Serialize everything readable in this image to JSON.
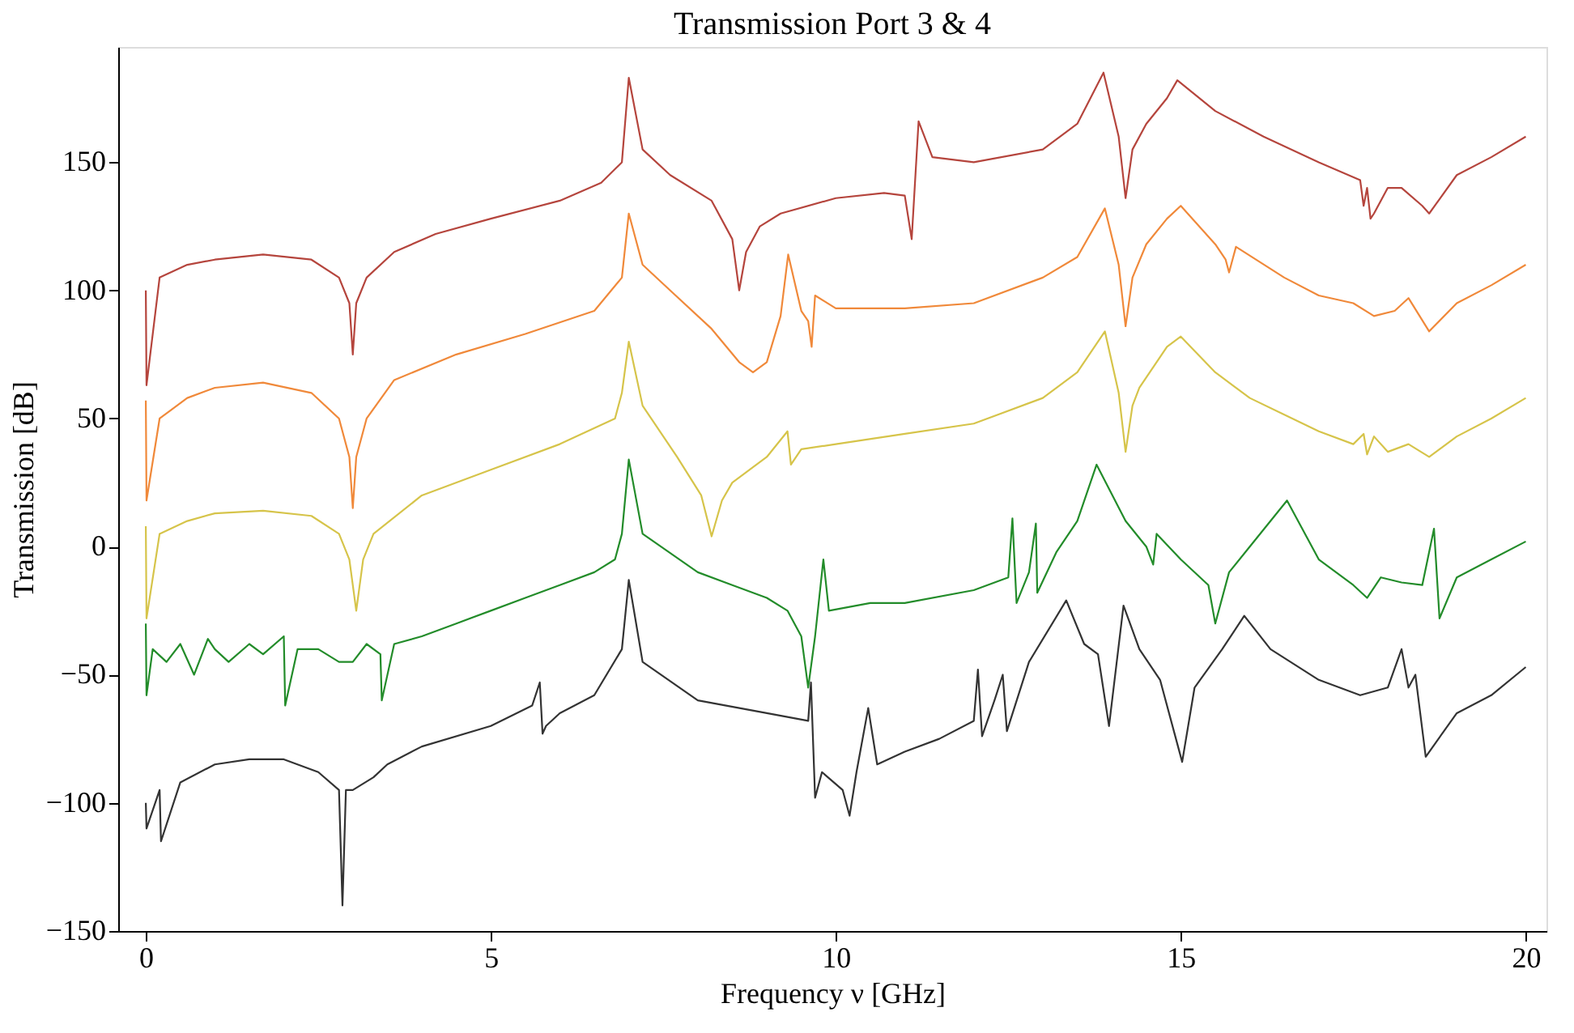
{
  "chart_data": {
    "type": "line",
    "title": "Transmission Port 3 & 4",
    "xlabel": "Frequency ν [GHz]",
    "ylabel": "Transmission [dB]",
    "xlim": [
      -0.4,
      20.3
    ],
    "ylim": [
      -150,
      195
    ],
    "xticks": [
      0,
      5,
      10,
      15,
      20
    ],
    "yticks": [
      -150,
      -100,
      -50,
      0,
      50,
      100,
      150
    ],
    "grid": false,
    "marker": "none",
    "line_style": "solid",
    "series": [
      {
        "color": "#b5453d",
        "x": [
          0,
          0.01,
          0.2,
          0.6,
          1,
          1.7,
          2.4,
          2.8,
          2.95,
          3.0,
          3.05,
          3.2,
          3.6,
          4.2,
          5,
          6,
          6.6,
          6.9,
          7.0,
          7.2,
          7.6,
          8.2,
          8.5,
          8.6,
          8.7,
          8.9,
          9.2,
          10,
          10.7,
          11.0,
          11.1,
          11.2,
          11.4,
          12,
          13,
          13.5,
          13.88,
          14.1,
          14.2,
          14.3,
          14.5,
          14.8,
          14.95,
          15.5,
          16.2,
          17.0,
          17.6,
          17.65,
          17.7,
          17.75,
          17.8,
          18.0,
          18.2,
          18.5,
          18.6,
          19.0,
          19.5,
          20
        ],
        "values": [
          100,
          63,
          105,
          110,
          112,
          114,
          112,
          105,
          95,
          75,
          95,
          105,
          115,
          122,
          128,
          135,
          142,
          150,
          183,
          155,
          145,
          135,
          120,
          100,
          115,
          125,
          130,
          136,
          138,
          137,
          120,
          166,
          152,
          150,
          155,
          165,
          185,
          160,
          136,
          155,
          165,
          175,
          182,
          170,
          160,
          150,
          143,
          133,
          140,
          128,
          130,
          140,
          140,
          133,
          130,
          145,
          152,
          160
        ]
      },
      {
        "color": "#f0893a",
        "x": [
          0,
          0.01,
          0.2,
          0.6,
          1,
          1.7,
          2.4,
          2.8,
          2.95,
          3.0,
          3.05,
          3.2,
          3.6,
          4.5,
          5.5,
          6.5,
          6.9,
          7.0,
          7.2,
          7.6,
          8.2,
          8.6,
          8.8,
          9.0,
          9.2,
          9.31,
          9.5,
          9.6,
          9.65,
          9.7,
          10,
          11,
          12,
          13,
          13.5,
          13.9,
          14.1,
          14.2,
          14.3,
          14.5,
          14.8,
          15.0,
          15.5,
          15.65,
          15.7,
          15.8,
          16.5,
          17,
          17.5,
          17.8,
          18.1,
          18.3,
          18.6,
          19,
          19.5,
          20
        ],
        "values": [
          57,
          18,
          50,
          58,
          62,
          64,
          60,
          50,
          35,
          15,
          35,
          50,
          65,
          75,
          83,
          92,
          105,
          130,
          110,
          100,
          85,
          72,
          68,
          72,
          90,
          114,
          92,
          88,
          78,
          98,
          93,
          93,
          95,
          105,
          113,
          132,
          110,
          86,
          105,
          118,
          128,
          133,
          118,
          112,
          107,
          117,
          105,
          98,
          95,
          90,
          92,
          97,
          84,
          95,
          102,
          110
        ]
      },
      {
        "color": "#d6c44a",
        "x": [
          0,
          0.01,
          0.2,
          0.6,
          1,
          1.7,
          2.4,
          2.8,
          2.95,
          3.05,
          3.15,
          3.3,
          4,
          5,
          6,
          6.8,
          6.9,
          7.0,
          7.2,
          7.7,
          8.05,
          8.2,
          8.35,
          8.5,
          9.0,
          9.3,
          9.35,
          9.5,
          10,
          11,
          12,
          13,
          13.5,
          13.9,
          14.1,
          14.2,
          14.3,
          14.4,
          14.8,
          15.0,
          15.5,
          16,
          17,
          17.5,
          17.65,
          17.7,
          17.8,
          18,
          18.3,
          18.6,
          19,
          19.5,
          20
        ],
        "values": [
          8,
          -28,
          5,
          10,
          13,
          14,
          12,
          5,
          -5,
          -25,
          -5,
          5,
          20,
          30,
          40,
          50,
          60,
          80,
          55,
          35,
          20,
          4,
          18,
          25,
          35,
          45,
          32,
          38,
          40,
          44,
          48,
          58,
          68,
          84,
          60,
          37,
          55,
          62,
          78,
          82,
          68,
          58,
          45,
          40,
          44,
          36,
          43,
          37,
          40,
          35,
          43,
          50,
          58
        ]
      },
      {
        "color": "#238c2a",
        "x": [
          0,
          0.01,
          0.1,
          0.3,
          0.5,
          0.7,
          0.9,
          1,
          1.2,
          1.5,
          1.7,
          2.0,
          2.02,
          2.2,
          2.5,
          2.8,
          3,
          3.2,
          3.4,
          3.42,
          3.6,
          4,
          4.5,
          5,
          5.5,
          6,
          6.5,
          6.8,
          6.9,
          7.0,
          7.2,
          8,
          8.5,
          9,
          9.3,
          9.5,
          9.6,
          9.7,
          9.82,
          9.9,
          10.5,
          11,
          12,
          12.5,
          12.56,
          12.62,
          12.8,
          12.9,
          12.92,
          13.2,
          13.5,
          13.78,
          14.2,
          14.5,
          14.6,
          14.65,
          15,
          15.4,
          15.5,
          15.7,
          16,
          16.54,
          17,
          17.5,
          17.7,
          17.9,
          18.2,
          18.5,
          18.67,
          18.75,
          19,
          19.5,
          20
        ],
        "values": [
          -30,
          -58,
          -40,
          -45,
          -38,
          -50,
          -36,
          -40,
          -45,
          -38,
          -42,
          -35,
          -62,
          -40,
          -40,
          -45,
          -45,
          -38,
          -42,
          -60,
          -38,
          -35,
          -30,
          -25,
          -20,
          -15,
          -10,
          -5,
          5,
          34,
          5,
          -10,
          -15,
          -20,
          -25,
          -35,
          -55,
          -35,
          -5,
          -25,
          -22,
          -22,
          -17,
          -12,
          11,
          -22,
          -10,
          9,
          -18,
          -2,
          10,
          32,
          10,
          0,
          -7,
          5,
          -5,
          -15,
          -30,
          -10,
          0,
          18,
          -5,
          -15,
          -20,
          -12,
          -14,
          -15,
          7,
          -28,
          -12,
          -5,
          2
        ]
      },
      {
        "color": "#333333",
        "x": [
          0,
          0.01,
          0.2,
          0.22,
          0.5,
          1,
          1.5,
          2,
          2.5,
          2.8,
          2.85,
          2.9,
          3.0,
          3.3,
          3.5,
          4,
          5,
          5.6,
          5.71,
          5.75,
          5.8,
          6,
          6.5,
          6.9,
          7.0,
          7.2,
          8,
          9,
          9.6,
          9.64,
          9.7,
          9.8,
          10.1,
          10.2,
          10.3,
          10.47,
          10.6,
          11,
          11.5,
          12,
          12.06,
          12.12,
          12.3,
          12.42,
          12.48,
          12.8,
          13.34,
          13.6,
          13.8,
          13.96,
          14.17,
          14.4,
          14.7,
          15.02,
          15.2,
          15.6,
          15.92,
          16.3,
          17,
          17.6,
          18.0,
          18.2,
          18.3,
          18.4,
          18.55,
          19,
          19.5,
          20
        ],
        "values": [
          -100,
          -110,
          -95,
          -115,
          -92,
          -85,
          -83,
          -83,
          -88,
          -95,
          -140,
          -95,
          -95,
          -90,
          -85,
          -78,
          -70,
          -62,
          -53,
          -73,
          -70,
          -65,
          -58,
          -40,
          -13,
          -45,
          -60,
          -65,
          -68,
          -53,
          -98,
          -88,
          -95,
          -105,
          -88,
          -63,
          -85,
          -80,
          -75,
          -68,
          -48,
          -74,
          -60,
          -50,
          -72,
          -45,
          -21,
          -38,
          -42,
          -70,
          -23,
          -40,
          -52,
          -84,
          -55,
          -40,
          -27,
          -40,
          -52,
          -58,
          -55,
          -40,
          -55,
          -50,
          -82,
          -65,
          -58,
          -47
        ]
      }
    ]
  }
}
